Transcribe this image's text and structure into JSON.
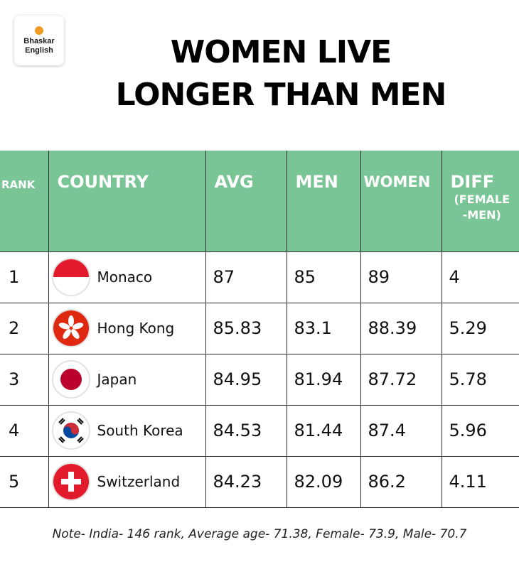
{
  "logo": {
    "line1": "Bhaskar",
    "line2": "English"
  },
  "title": {
    "line1": "WOMEN LIVE",
    "line2": "LONGER THAN MEN"
  },
  "headers": {
    "rank": "RANK",
    "country": "COUNTRY",
    "avg": "AVG",
    "men": "MEN",
    "women": "WOMEN",
    "diff": "DIFF",
    "diff_sub": "(FEMALE -MEN)"
  },
  "rows": [
    {
      "rank": "1",
      "country": "Monaco",
      "flag": "monaco-flag-icon",
      "avg": "87",
      "men": "85",
      "women": "89",
      "diff": "4"
    },
    {
      "rank": "2",
      "country": "Hong Kong",
      "flag": "hong-kong-flag-icon",
      "avg": "85.83",
      "men": "83.1",
      "women": "88.39",
      "diff": "5.29"
    },
    {
      "rank": "3",
      "country": "Japan",
      "flag": "japan-flag-icon",
      "avg": "84.95",
      "men": "81.94",
      "women": "87.72",
      "diff": "5.78"
    },
    {
      "rank": "4",
      "country": "South Korea",
      "flag": "south-korea-flag-icon",
      "avg": "84.53",
      "men": "81.44",
      "women": "87.4",
      "diff": "5.96"
    },
    {
      "rank": "5",
      "country": "Switzerland",
      "flag": "switzerland-flag-icon",
      "avg": "84.23",
      "men": "82.09",
      "women": "86.2",
      "diff": "4.11"
    }
  ],
  "note": "Note- India- 146 rank, Average age- 71.38, Female- 73.9, Male- 70.7",
  "colors": {
    "header_bg": "#7ac595",
    "header_text": "#ffffff",
    "logo_dot": "#f29b22"
  },
  "chart_data": {
    "type": "table",
    "title": "WOMEN LIVE LONGER THAN MEN",
    "columns": [
      "RANK",
      "COUNTRY",
      "AVG",
      "MEN",
      "WOMEN",
      "DIFF (FEMALE -MEN)"
    ],
    "rows": [
      [
        1,
        "Monaco",
        87,
        85,
        89,
        4
      ],
      [
        2,
        "Hong Kong",
        85.83,
        83.1,
        88.39,
        5.29
      ],
      [
        3,
        "Japan",
        84.95,
        81.94,
        87.72,
        5.78
      ],
      [
        4,
        "South Korea",
        84.53,
        81.44,
        87.4,
        5.96
      ],
      [
        5,
        "Switzerland",
        84.23,
        82.09,
        86.2,
        4.11
      ]
    ]
  }
}
